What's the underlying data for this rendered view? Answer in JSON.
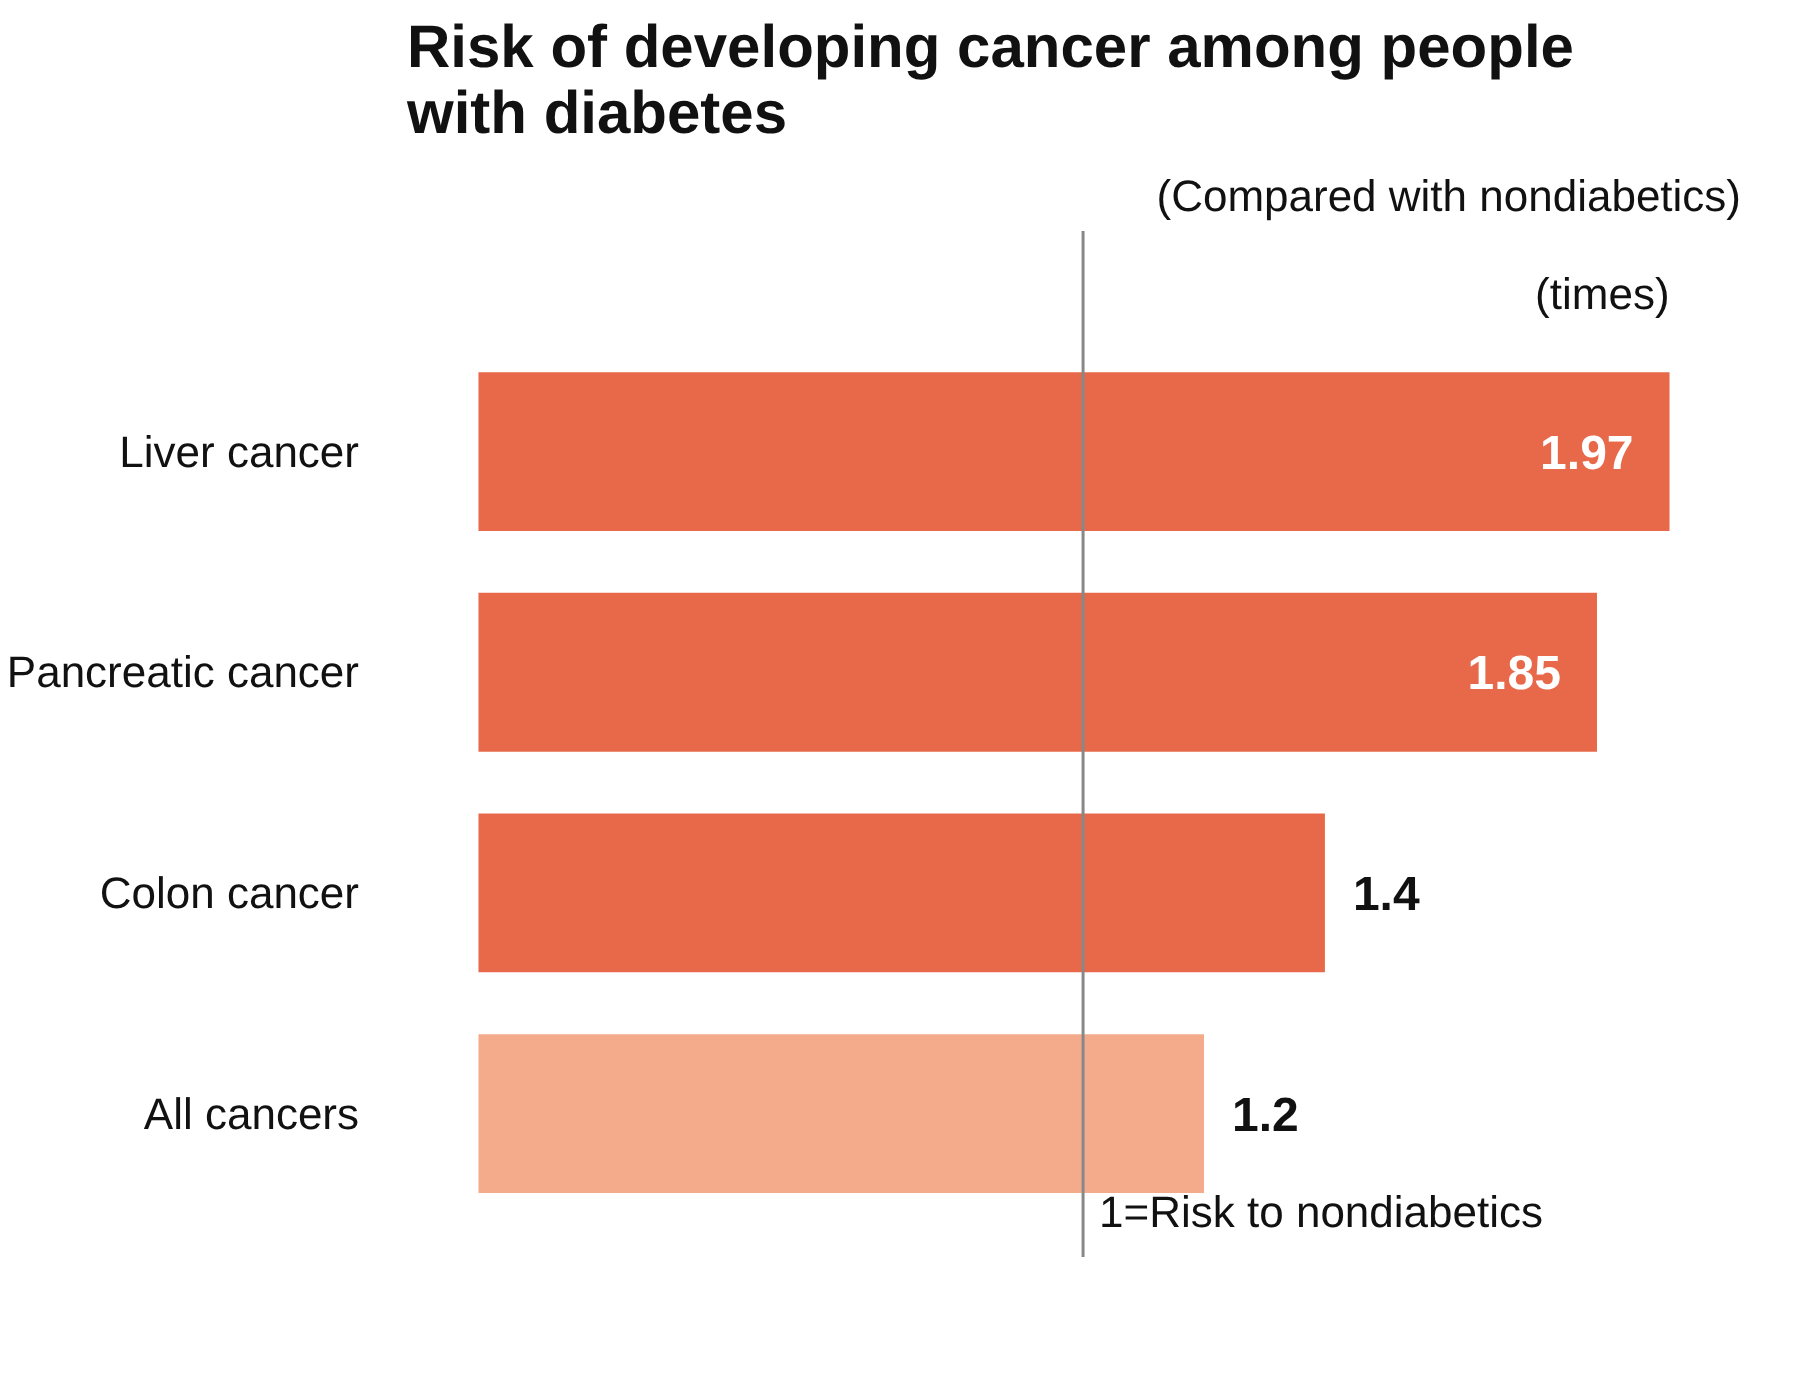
{
  "chart_data": {
    "type": "bar",
    "orientation": "horizontal",
    "title": "Risk of developing cancer among people\nwith diabetes",
    "subtitle": "(Compared with nondiabetics)",
    "xlabel": "(times)",
    "categories": [
      "Liver cancer",
      "Pancreatic cancer",
      "Colon cancer",
      "All cancers"
    ],
    "values": [
      1.97,
      1.85,
      1.4,
      1.2
    ],
    "colors": [
      "#e8694a",
      "#e8694a",
      "#e8694a",
      "#f4ab8b"
    ],
    "tick_labels": "y",
    "grid": false,
    "data_labels": true,
    "ref_lines": [
      {
        "axis": "x",
        "value": 1,
        "label": "1=Risk to nondiabetics",
        "color": "#888888"
      }
    ]
  }
}
